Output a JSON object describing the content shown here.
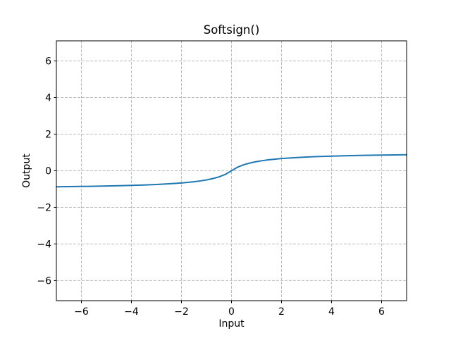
{
  "figure": {
    "background": "#ffffff",
    "spine_color": "#000000",
    "text_color": "#000000"
  },
  "chart_data": {
    "type": "line",
    "title": "Softsign()",
    "xlabel": "Input",
    "ylabel": "Output",
    "xlim": [
      -7,
      7
    ],
    "ylim": [
      -7.1,
      7.1
    ],
    "x_ticks": [
      -6,
      -4,
      -2,
      0,
      2,
      4,
      6
    ],
    "x_tick_labels": [
      "−6",
      "−4",
      "−2",
      "0",
      "2",
      "4",
      "6"
    ],
    "y_ticks": [
      -6,
      -4,
      -2,
      0,
      2,
      4,
      6
    ],
    "y_tick_labels": [
      "−6",
      "−4",
      "−2",
      "0",
      "2",
      "4",
      "6"
    ],
    "grid": true,
    "grid_style": "dashed",
    "grid_color": "#bdbdbd",
    "legend_position": "none",
    "series": [
      {
        "name": "Softsign()",
        "color": "#1f77b4",
        "points": [
          [
            -7,
            -0.875
          ],
          [
            -6.5,
            -0.8667
          ],
          [
            -6,
            -0.8571
          ],
          [
            -5.5,
            -0.8462
          ],
          [
            -5,
            -0.8333
          ],
          [
            -4.5,
            -0.8182
          ],
          [
            -4,
            -0.8
          ],
          [
            -3.5,
            -0.7778
          ],
          [
            -3,
            -0.75
          ],
          [
            -2.5,
            -0.7143
          ],
          [
            -2,
            -0.6667
          ],
          [
            -1.75,
            -0.6364
          ],
          [
            -1.5,
            -0.6
          ],
          [
            -1.25,
            -0.5556
          ],
          [
            -1,
            -0.5
          ],
          [
            -0.75,
            -0.4286
          ],
          [
            -0.5,
            -0.3333
          ],
          [
            -0.25,
            -0.2
          ],
          [
            0,
            0
          ],
          [
            0.25,
            0.2
          ],
          [
            0.5,
            0.3333
          ],
          [
            0.75,
            0.4286
          ],
          [
            1,
            0.5
          ],
          [
            1.25,
            0.5556
          ],
          [
            1.5,
            0.6
          ],
          [
            1.75,
            0.6364
          ],
          [
            2,
            0.6667
          ],
          [
            2.5,
            0.7143
          ],
          [
            3,
            0.75
          ],
          [
            3.5,
            0.7778
          ],
          [
            4,
            0.8
          ],
          [
            4.5,
            0.8182
          ],
          [
            5,
            0.8333
          ],
          [
            5.5,
            0.8462
          ],
          [
            6,
            0.8571
          ],
          [
            6.5,
            0.8667
          ],
          [
            7,
            0.875
          ]
        ]
      }
    ]
  }
}
